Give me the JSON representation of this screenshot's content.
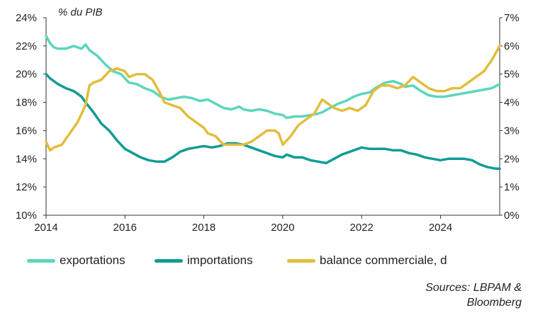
{
  "chart_data": {
    "type": "line",
    "unit_label": "% du PIB",
    "xlim": [
      2014,
      2025.5
    ],
    "x_ticks": [
      "2014",
      "2016",
      "2018",
      "2020",
      "2022",
      "2024"
    ],
    "x_tick_values": [
      2014,
      2016,
      2018,
      2020,
      2022,
      2024
    ],
    "ylim_left": [
      10,
      24
    ],
    "y_ticks_left": [
      "10%",
      "12%",
      "14%",
      "16%",
      "18%",
      "20%",
      "22%",
      "24%"
    ],
    "y_tick_values_left": [
      10,
      12,
      14,
      16,
      18,
      20,
      22,
      24
    ],
    "ylim_right": [
      0,
      7
    ],
    "y_ticks_right": [
      "0%",
      "1%",
      "2%",
      "3%",
      "4%",
      "5%",
      "6%",
      "7%"
    ],
    "y_tick_values_right": [
      0,
      1,
      2,
      3,
      4,
      5,
      6,
      7
    ],
    "series": [
      {
        "name": "exportations",
        "axis": "left",
        "color": "#5cd6bd",
        "x": [
          2014.0,
          2014.1,
          2014.2,
          2014.3,
          2014.5,
          2014.7,
          2014.9,
          2015.0,
          2015.1,
          2015.3,
          2015.5,
          2015.7,
          2015.9,
          2016.1,
          2016.3,
          2016.5,
          2016.7,
          2016.9,
          2017.1,
          2017.3,
          2017.5,
          2017.7,
          2017.9,
          2018.1,
          2018.3,
          2018.5,
          2018.7,
          2018.9,
          2019.0,
          2019.2,
          2019.4,
          2019.6,
          2019.8,
          2020.0,
          2020.1,
          2020.3,
          2020.5,
          2020.7,
          2020.9,
          2021.0,
          2021.2,
          2021.4,
          2021.6,
          2021.8,
          2022.0,
          2022.2,
          2022.4,
          2022.6,
          2022.8,
          2023.0,
          2023.1,
          2023.3,
          2023.5,
          2023.7,
          2023.9,
          2024.1,
          2024.3,
          2024.5,
          2024.7,
          2024.9,
          2025.1,
          2025.3,
          2025.5
        ],
        "values": [
          22.7,
          22.2,
          21.9,
          21.8,
          21.8,
          22.0,
          21.8,
          22.1,
          21.7,
          21.3,
          20.7,
          20.2,
          20.0,
          19.4,
          19.3,
          19.0,
          18.8,
          18.4,
          18.2,
          18.3,
          18.4,
          18.3,
          18.1,
          18.2,
          17.9,
          17.6,
          17.5,
          17.7,
          17.5,
          17.4,
          17.5,
          17.4,
          17.2,
          17.1,
          16.9,
          17.0,
          17.0,
          17.1,
          17.2,
          17.3,
          17.6,
          17.9,
          18.1,
          18.4,
          18.6,
          18.7,
          19.1,
          19.4,
          19.5,
          19.3,
          19.1,
          19.2,
          18.8,
          18.5,
          18.4,
          18.4,
          18.5,
          18.6,
          18.7,
          18.8,
          18.9,
          19.0,
          19.3
        ]
      },
      {
        "name": "importations",
        "axis": "left",
        "color": "#0f9c94",
        "x": [
          2014.0,
          2014.1,
          2014.3,
          2014.5,
          2014.7,
          2014.9,
          2015.0,
          2015.2,
          2015.4,
          2015.6,
          2015.8,
          2016.0,
          2016.2,
          2016.4,
          2016.6,
          2016.8,
          2017.0,
          2017.2,
          2017.4,
          2017.6,
          2017.8,
          2018.0,
          2018.2,
          2018.4,
          2018.6,
          2018.8,
          2019.0,
          2019.2,
          2019.4,
          2019.6,
          2019.8,
          2020.0,
          2020.1,
          2020.3,
          2020.5,
          2020.7,
          2020.9,
          2021.1,
          2021.3,
          2021.5,
          2021.7,
          2021.9,
          2022.0,
          2022.2,
          2022.4,
          2022.6,
          2022.8,
          2023.0,
          2023.2,
          2023.4,
          2023.6,
          2023.8,
          2024.0,
          2024.2,
          2024.4,
          2024.6,
          2024.8,
          2025.0,
          2025.2,
          2025.4,
          2025.5
        ],
        "values": [
          20.0,
          19.7,
          19.3,
          19.0,
          18.8,
          18.4,
          18.0,
          17.3,
          16.5,
          16.0,
          15.3,
          14.7,
          14.4,
          14.1,
          13.9,
          13.8,
          13.8,
          14.1,
          14.5,
          14.7,
          14.8,
          14.9,
          14.8,
          14.9,
          15.1,
          15.1,
          15.0,
          14.8,
          14.6,
          14.4,
          14.2,
          14.1,
          14.3,
          14.1,
          14.1,
          13.9,
          13.8,
          13.7,
          14.0,
          14.3,
          14.5,
          14.7,
          14.8,
          14.7,
          14.7,
          14.7,
          14.6,
          14.6,
          14.4,
          14.3,
          14.1,
          14.0,
          13.9,
          14.0,
          14.0,
          14.0,
          13.9,
          13.6,
          13.4,
          13.3,
          13.3
        ]
      },
      {
        "name": "balance commerciale, d",
        "axis": "right",
        "color": "#e2bd3c",
        "x": [
          2014.0,
          2014.1,
          2014.2,
          2014.4,
          2014.6,
          2014.8,
          2015.0,
          2015.1,
          2015.2,
          2015.4,
          2015.6,
          2015.8,
          2016.0,
          2016.1,
          2016.3,
          2016.5,
          2016.7,
          2016.9,
          2017.0,
          2017.2,
          2017.4,
          2017.6,
          2017.8,
          2018.0,
          2018.1,
          2018.3,
          2018.5,
          2018.7,
          2018.9,
          2019.0,
          2019.2,
          2019.4,
          2019.6,
          2019.8,
          2019.9,
          2020.0,
          2020.2,
          2020.4,
          2020.6,
          2020.8,
          2021.0,
          2021.1,
          2021.3,
          2021.5,
          2021.7,
          2021.9,
          2022.1,
          2022.3,
          2022.5,
          2022.7,
          2022.9,
          2023.1,
          2023.3,
          2023.5,
          2023.7,
          2023.9,
          2024.1,
          2024.3,
          2024.5,
          2024.7,
          2024.9,
          2025.1,
          2025.3,
          2025.5
        ],
        "values": [
          2.6,
          2.3,
          2.4,
          2.5,
          2.9,
          3.3,
          3.9,
          4.6,
          4.7,
          4.8,
          5.1,
          5.2,
          5.1,
          4.9,
          5.0,
          5.0,
          4.8,
          4.3,
          4.0,
          3.9,
          3.8,
          3.5,
          3.3,
          3.1,
          2.9,
          2.8,
          2.5,
          2.5,
          2.5,
          2.5,
          2.6,
          2.8,
          3.0,
          3.0,
          2.9,
          2.5,
          2.8,
          3.2,
          3.4,
          3.6,
          4.1,
          4.0,
          3.8,
          3.7,
          3.8,
          3.7,
          3.9,
          4.4,
          4.6,
          4.6,
          4.5,
          4.6,
          4.9,
          4.7,
          4.5,
          4.4,
          4.4,
          4.5,
          4.5,
          4.7,
          4.9,
          5.1,
          5.5,
          6.0
        ]
      }
    ]
  },
  "source": {
    "line1": "Sources: LBPAM &",
    "line2": "Bloomberg"
  }
}
